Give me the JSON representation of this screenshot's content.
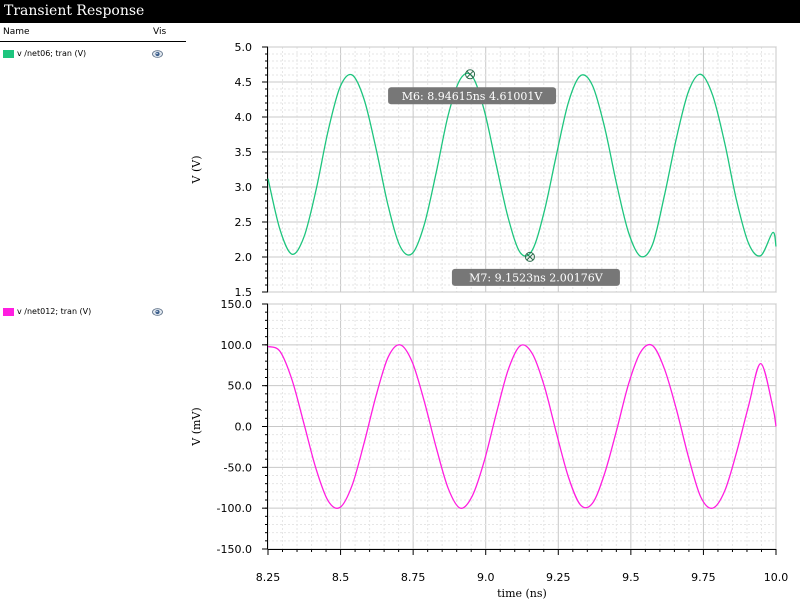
{
  "window": {
    "title": "Transient Response"
  },
  "legend": {
    "header_name": "Name",
    "header_vis": "Vis",
    "items": [
      {
        "label": "v /net06; tran (V)",
        "color": "#1ec57e",
        "icon": "eye-icon"
      },
      {
        "label": "v /net012; tran (V)",
        "color": "#ff1ee0",
        "icon": "eye-icon"
      }
    ]
  },
  "chart_data": [
    {
      "type": "line",
      "xlabel": "",
      "ylabel": "V (V)",
      "xlim": [
        8.25,
        10.0
      ],
      "ylim": [
        1.5,
        5.0
      ],
      "yticks": [
        "5.0",
        "4.5",
        "4.0",
        "3.5",
        "3.0",
        "2.5",
        "2.0",
        "1.5"
      ],
      "grid": true,
      "series": [
        {
          "name": "v /net06; tran (V)",
          "color": "#1ec57e",
          "x": [
            8.25,
            8.2914,
            8.3328,
            8.3742,
            8.4156,
            8.457,
            8.4984,
            8.5398,
            8.5812,
            8.6226,
            8.664,
            8.7054,
            8.7468,
            8.7882,
            8.8296,
            8.871,
            8.9124,
            8.9538,
            8.9952,
            9.0366,
            9.078,
            9.1194,
            9.1608,
            9.2022,
            9.2436,
            9.285,
            9.3264,
            9.3678,
            9.4092,
            9.4506,
            9.492,
            9.5334,
            9.5748,
            9.6162,
            9.6576,
            9.699,
            9.7404,
            9.7818,
            9.8232,
            9.8646,
            9.906,
            9.9474,
            9.9888,
            10.0
          ],
          "values": [
            3.12,
            2.39,
            2.04,
            2.29,
            2.96,
            3.8,
            4.43,
            4.6,
            4.25,
            3.54,
            2.73,
            2.15,
            2.05,
            2.46,
            3.21,
            4.03,
            4.54,
            4.58,
            4.09,
            3.31,
            2.55,
            2.06,
            2.1,
            2.66,
            3.46,
            4.21,
            4.59,
            4.45,
            3.86,
            3.05,
            2.35,
            2.01,
            2.18,
            2.89,
            3.71,
            4.37,
            4.61,
            4.31,
            3.63,
            2.8,
            2.19,
            2.02,
            2.35,
            2.15
          ]
        }
      ],
      "markers": [
        {
          "label": "M6: 8.94615ns 4.61001V",
          "x": 8.94615,
          "y": 4.61001
        },
        {
          "label": "M7: 9.1523ns 2.00176V",
          "x": 9.1523,
          "y": 2.00176
        }
      ]
    },
    {
      "type": "line",
      "xlabel": "time (ns)",
      "ylabel": "V (mV)",
      "xlim": [
        8.25,
        10.0
      ],
      "ylim": [
        -150,
        150
      ],
      "yticks": [
        "150.0",
        "100.0",
        "50.0",
        "0.0",
        "-50.0",
        "-100.0",
        "-150.0"
      ],
      "xticks": [
        "8.25",
        "8.5",
        "8.75",
        "9.0",
        "9.25",
        "9.5",
        "9.75",
        "10.0"
      ],
      "grid": true,
      "series": [
        {
          "name": "v /net012; tran (V)",
          "color": "#ff1ee0",
          "x": [
            8.25,
            8.2914,
            8.3328,
            8.3742,
            8.4156,
            8.457,
            8.4984,
            8.5398,
            8.5812,
            8.6226,
            8.664,
            8.7054,
            8.7468,
            8.7882,
            8.8296,
            8.871,
            8.9124,
            8.9538,
            8.9952,
            9.0366,
            9.078,
            9.1194,
            9.1608,
            9.2022,
            9.2436,
            9.285,
            9.3264,
            9.3678,
            9.4092,
            9.4506,
            9.492,
            9.5334,
            9.5748,
            9.6162,
            9.6576,
            9.699,
            9.7404,
            9.7818,
            9.8232,
            9.8646,
            9.906,
            9.9474,
            9.9888,
            10.0
          ],
          "values": [
            98,
            92,
            57,
            3,
            -52,
            -91,
            -99,
            -72,
            -20,
            38,
            85,
            100,
            79,
            31,
            -26,
            -76,
            -100,
            -85,
            -42,
            16,
            70,
            99,
            89,
            49,
            -8,
            -62,
            -96,
            -94,
            -58,
            -5,
            52,
            91,
            99,
            70,
            20,
            -38,
            -86,
            -100,
            -79,
            -31,
            26,
            77,
            24,
            0
          ]
        }
      ]
    }
  ]
}
